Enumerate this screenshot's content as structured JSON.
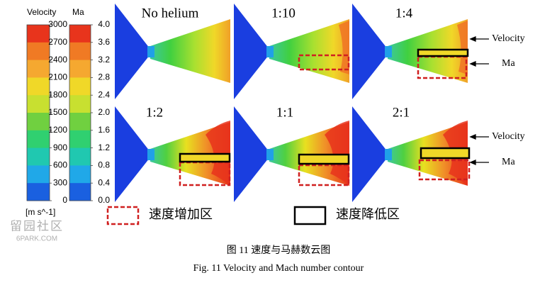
{
  "colorbars": [
    {
      "label": "Velocity",
      "unit": "[m s^-1]",
      "lim": [
        0,
        3000
      ],
      "ticks": [
        3000,
        2700,
        2400,
        2100,
        1800,
        1500,
        1200,
        900,
        600,
        300,
        0
      ]
    },
    {
      "label": "Ma",
      "lim": [
        0,
        4
      ],
      "ticks": [
        {
          "value": 4,
          "label": "4.0"
        },
        {
          "value": 3.6,
          "label": "3.6"
        },
        {
          "value": 3.2,
          "label": "3.2"
        },
        {
          "value": 2.8,
          "label": "2.8"
        },
        {
          "value": 2.4,
          "label": "2.4"
        },
        {
          "value": 2,
          "label": "2.0"
        },
        {
          "value": 1.6,
          "label": "1.6"
        },
        {
          "value": 1.2,
          "label": "1.2"
        },
        {
          "value": 0.8,
          "label": "0.8"
        },
        {
          "value": 0.4,
          "label": "0.4"
        },
        {
          "value": 0,
          "label": "0.0"
        }
      ]
    }
  ],
  "panels": [
    {
      "title": "No helium"
    },
    {
      "title": "1:10"
    },
    {
      "title": "1:4"
    },
    {
      "title": "1:2"
    },
    {
      "title": "1:1"
    },
    {
      "title": "2:1"
    }
  ],
  "annotations": [
    "Velocity",
    "Ma",
    "Velocity",
    "Ma"
  ],
  "legend": {
    "increase": "速度增加区",
    "decrease": "速度降低区"
  },
  "watermark": {
    "line1": "留园社区",
    "line2": "6PARK.COM"
  },
  "caption": {
    "chinese": "图 11 速度与马赫数云图",
    "english": "Fig. 11 Velocity and Mach number contour"
  }
}
